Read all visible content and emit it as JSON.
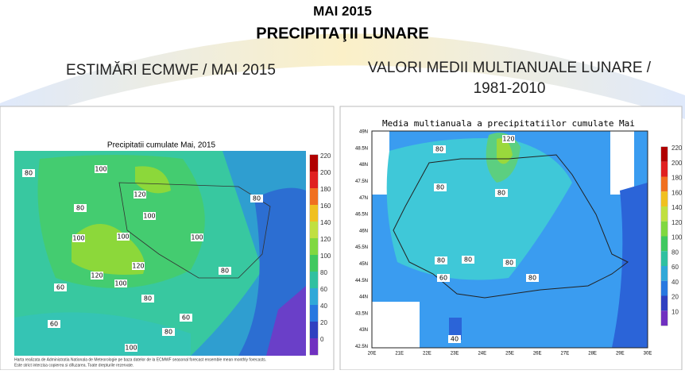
{
  "header": {
    "title": "MAI 2015",
    "subtitle": "PRECIPITAŢII LUNARE"
  },
  "left_panel": {
    "heading": "ESTIMĂRI ECMWF / MAI 2015",
    "map_title": "Precipitatii cumulate Mai, 2015",
    "colorbar_labels": [
      220,
      200,
      180,
      160,
      140,
      120,
      100,
      80,
      60,
      40,
      20,
      0
    ],
    "contour_labels": [
      80,
      100,
      120,
      80,
      100,
      100,
      100,
      100,
      120,
      120,
      100,
      80,
      80,
      60,
      80,
      60,
      60,
      80,
      100
    ],
    "footnote": [
      "Harta realizata de Administratia Nationala de Meteorologie pe baza datelor de la ECMWF seasonal forecast ensemble mean monthly forecasts.",
      "Este strict interzisa copierea si difuzarea. Toate drepturile rezervate."
    ]
  },
  "right_panel": {
    "heading": [
      "VALORI MEDII MULTIANUALE LUNARE /",
      "1981-2010"
    ],
    "map_title": "Media multianuala a precipitatiilor cumulate Mai",
    "colorbar_labels": [
      220,
      200,
      180,
      160,
      140,
      120,
      100,
      80,
      60,
      40,
      20,
      10
    ],
    "contour_labels": [
      120,
      80,
      80,
      80,
      80,
      80,
      80,
      60,
      80,
      40
    ],
    "lat_labels": [
      "49N",
      "48.5N",
      "48N",
      "47.5N",
      "47N",
      "46.5N",
      "46N",
      "45.5N",
      "45N",
      "44.5N",
      "44N",
      "43.5N",
      "43N",
      "42.5N"
    ],
    "lon_labels": [
      "20E",
      "21E",
      "22E",
      "23E",
      "24E",
      "25E",
      "26E",
      "27E",
      "28E",
      "29E",
      "30E"
    ]
  }
}
